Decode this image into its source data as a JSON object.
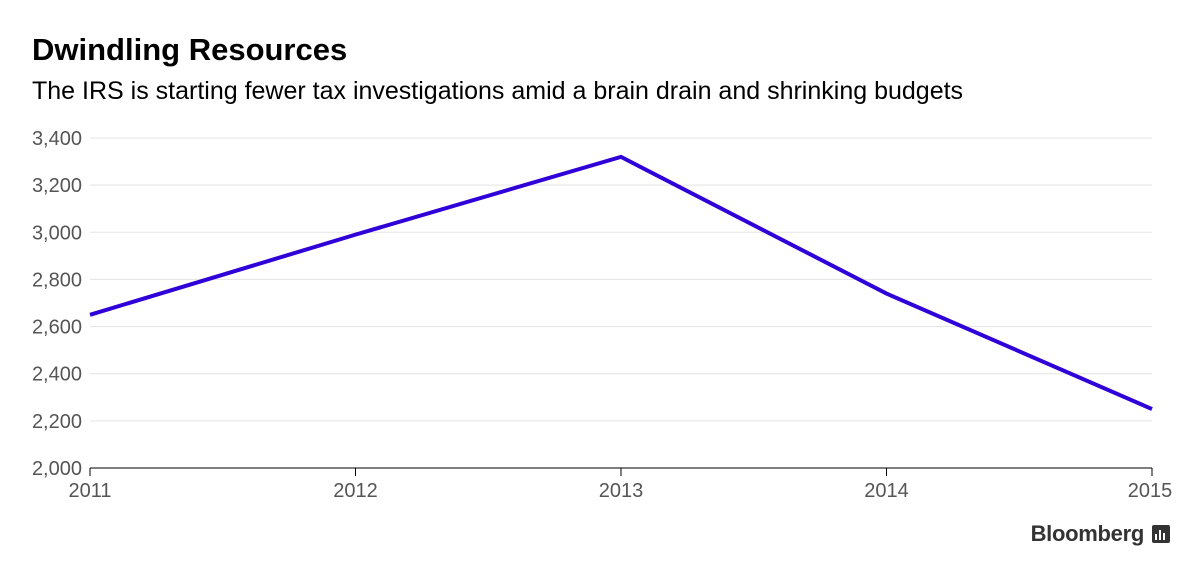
{
  "chart_data": {
    "type": "line",
    "title": "Dwindling Resources",
    "subtitle": "The IRS is starting fewer tax investigations amid a brain drain and shrinking budgets",
    "xlabel": "",
    "ylabel": "",
    "x": [
      "2011",
      "2012",
      "2013",
      "2014",
      "2015"
    ],
    "series": [
      {
        "values": [
          2650,
          2990,
          3320,
          2740,
          2250
        ],
        "color": "#2f00d8"
      }
    ],
    "ylim": [
      2000,
      3400
    ],
    "yticks": [
      2000,
      2200,
      2400,
      2600,
      2800,
      3000,
      3200,
      3400
    ],
    "ytick_labels": [
      "2,000",
      "2,200",
      "2,400",
      "2,600",
      "2,800",
      "3,000",
      "3,200",
      "3,400"
    ],
    "grid": true,
    "grid_axis": "y"
  },
  "branding": {
    "name": "Bloomberg",
    "logo": "bloomberg-terminal-icon"
  }
}
